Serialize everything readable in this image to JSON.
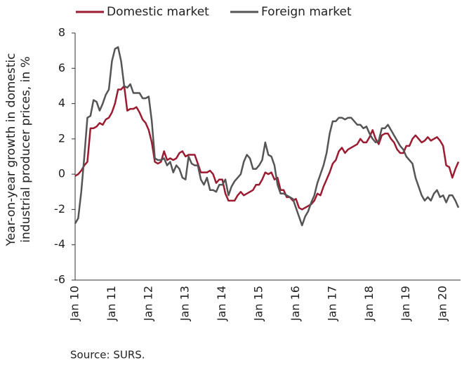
{
  "chart_data": {
    "type": "line",
    "ylabel": [
      "Year-on-year growth in domestic",
      "industrial producer prices, in %"
    ],
    "source": "Source: SURS.",
    "categories": [
      "Jan 10",
      null,
      null,
      null,
      null,
      null,
      null,
      null,
      null,
      null,
      null,
      null,
      "Jan 11",
      null,
      null,
      null,
      null,
      null,
      null,
      null,
      null,
      null,
      null,
      null,
      "Jan 12",
      null,
      null,
      null,
      null,
      null,
      null,
      null,
      null,
      null,
      null,
      null,
      "Jan 13",
      null,
      null,
      null,
      null,
      null,
      null,
      null,
      null,
      null,
      null,
      null,
      "Jan 14",
      null,
      null,
      null,
      null,
      null,
      null,
      null,
      null,
      null,
      null,
      null,
      "Jan 15",
      null,
      null,
      null,
      null,
      null,
      null,
      null,
      null,
      null,
      null,
      null,
      "Jan 16",
      null,
      null,
      null,
      null,
      null,
      null,
      null,
      null,
      null,
      null,
      null,
      "Jan 17",
      null,
      null,
      null,
      null,
      null,
      null,
      null,
      null,
      null,
      null,
      null,
      "Jan 18",
      null,
      null,
      null,
      null,
      null,
      null,
      null,
      null,
      null,
      null,
      null,
      "Jan 19",
      null,
      null,
      null,
      null,
      null,
      null,
      null,
      null,
      null,
      null,
      null,
      "Jan 20",
      null,
      null,
      null,
      null,
      null
    ],
    "series": [
      {
        "name": "Domestic market",
        "color": "#9b1b30",
        "values": [
          -0.1,
          0.0,
          0.2,
          0.5,
          0.7,
          2.6,
          2.6,
          2.7,
          2.9,
          2.8,
          3.1,
          3.2,
          3.5,
          4.0,
          4.8,
          4.8,
          5.0,
          3.6,
          3.7,
          3.7,
          3.8,
          3.5,
          3.1,
          2.9,
          2.5,
          1.8,
          0.7,
          0.6,
          0.7,
          1.3,
          0.8,
          0.9,
          0.8,
          0.9,
          1.2,
          1.3,
          1.0,
          1.1,
          1.1,
          1.1,
          0.6,
          0.1,
          0.1,
          0.1,
          0.2,
          0.0,
          -0.5,
          -0.3,
          -0.3,
          -1.1,
          -1.5,
          -1.5,
          -1.5,
          -1.2,
          -1.0,
          -1.2,
          -1.1,
          -1.0,
          -0.9,
          -0.6,
          -0.6,
          -0.3,
          0.1,
          0.0,
          0.1,
          -0.3,
          -0.2,
          -0.9,
          -0.9,
          -1.3,
          -1.3,
          -1.5,
          -1.4,
          -1.9,
          -2.0,
          -1.9,
          -1.8,
          -1.7,
          -1.5,
          -1.1,
          -1.2,
          -0.7,
          -0.3,
          0.1,
          0.6,
          0.8,
          1.3,
          1.5,
          1.2,
          1.4,
          1.5,
          1.6,
          1.7,
          2.0,
          1.8,
          1.8,
          2.1,
          2.5,
          2.0,
          1.7,
          2.2,
          2.3,
          2.3,
          2.0,
          1.8,
          1.4,
          1.2,
          1.2,
          1.6,
          1.6,
          2.0,
          2.2,
          2.0,
          1.8,
          1.9,
          2.1,
          1.9,
          2.0,
          2.1,
          1.9,
          1.6,
          0.5,
          0.4,
          -0.2,
          0.3,
          0.7
        ]
      },
      {
        "name": "Foreign market",
        "color": "#555555",
        "values": [
          -2.8,
          -2.5,
          -1.0,
          1.0,
          3.2,
          3.3,
          4.2,
          4.1,
          3.6,
          4.0,
          4.5,
          4.8,
          6.4,
          7.1,
          7.2,
          6.4,
          5.0,
          4.9,
          5.1,
          4.6,
          4.6,
          4.6,
          4.3,
          4.3,
          4.4,
          3.0,
          0.9,
          0.8,
          0.8,
          0.9,
          0.5,
          0.7,
          0.1,
          0.5,
          0.3,
          -0.2,
          -0.3,
          1.0,
          0.6,
          0.5,
          0.5,
          -0.3,
          -0.6,
          -0.2,
          -0.9,
          -0.9,
          -1.0,
          -0.6,
          -0.6,
          -0.3,
          -1.2,
          -0.7,
          -0.4,
          -0.2,
          0.0,
          0.7,
          1.1,
          0.9,
          0.3,
          0.3,
          0.5,
          0.8,
          1.8,
          1.1,
          1.0,
          0.5,
          -0.6,
          -1.1,
          -1.1,
          -1.2,
          -1.3,
          -1.4,
          -1.9,
          -2.4,
          -2.9,
          -2.4,
          -2.1,
          -1.6,
          -1.2,
          -0.5,
          0.0,
          0.5,
          1.2,
          2.3,
          3.0,
          3.0,
          3.2,
          3.2,
          3.1,
          3.2,
          3.2,
          3.0,
          2.8,
          2.8,
          2.6,
          2.7,
          2.3,
          2.0,
          1.8,
          1.9,
          2.6,
          2.6,
          2.8,
          2.5,
          2.2,
          1.9,
          1.6,
          1.4,
          1.0,
          0.8,
          0.6,
          -0.2,
          -0.7,
          -1.2,
          -1.5,
          -1.3,
          -1.5,
          -1.1,
          -0.9,
          -1.3,
          -1.2,
          -1.6,
          -1.2,
          -1.2,
          -1.5,
          -1.9
        ]
      }
    ],
    "ylim": [
      -6,
      8
    ],
    "yticks": [
      -6,
      -4,
      -2,
      0,
      2,
      4,
      6,
      8
    ],
    "grid": false
  }
}
